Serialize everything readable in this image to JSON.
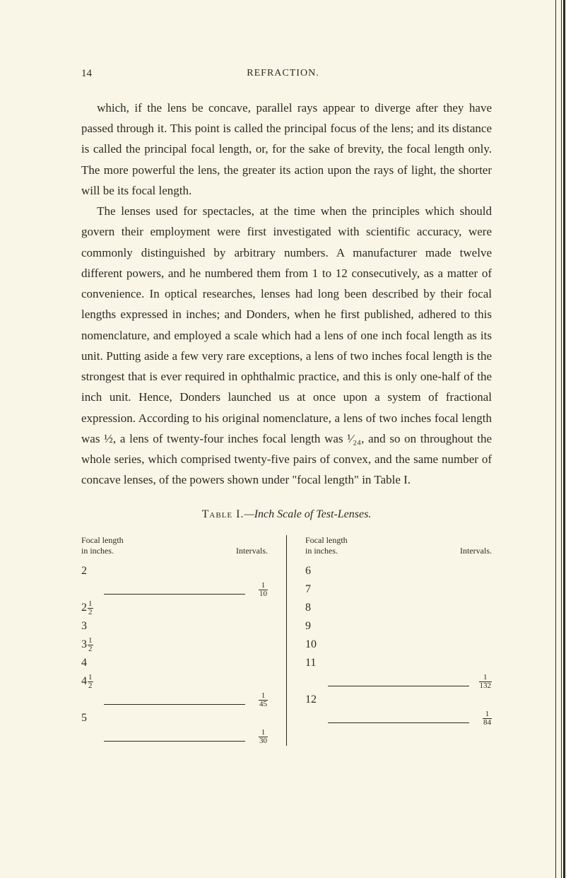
{
  "page": {
    "number": "14",
    "running_header": "REFRACTION."
  },
  "body": {
    "p1": "which, if the lens be concave, parallel rays appear to diverge after they have passed through it. This point is called the principal focus of the lens; and its distance is called the principal focal length, or, for the sake of brevity, the focal length only. The more powerful the lens, the greater its action upon the rays of light, the shorter will be its focal length.",
    "p2": "The lenses used for spectacles, at the time when the principles which should govern their employment were first investigated with scientific accuracy, were commonly distinguished by arbitrary numbers. A manufacturer made twelve different powers, and he numbered them from 1 to 12 consecutively, as a matter of convenience. In optical researches, lenses had long been described by their focal lengths expressed in inches; and Donders, when he first published, adhered to this nomenclature, and employed a scale which had a lens of one inch focal length as its unit. Putting aside a few very rare exceptions, a lens of two inches focal length is the strongest that is ever required in ophthalmic practice, and this is only one-half of the inch unit. Hence, Donders launched us at once upon a system of fractional expression. According to his original nomenclature, a lens of two inches focal length was ½, a lens of twenty-four inches focal length was ¹⁄₂₄, and so on throughout the whole series, which comprised twenty-five pairs of convex, and the same number of concave lenses, of the powers shown under \"focal length\" in Table I."
  },
  "table": {
    "title_caps": "Table I.",
    "title_rest": "—Inch Scale of Test-Lenses.",
    "header_focal": "Focal length\nin inches.",
    "header_interval": "Intervals.",
    "left": {
      "rows": [
        {
          "val": "2",
          "rule": false
        },
        {
          "val": "",
          "rule": true,
          "interval_num": "1",
          "interval_den": "10"
        },
        {
          "val": "2½",
          "mixed_whole": "2",
          "mixed_num": "1",
          "mixed_den": "2",
          "rule": false
        },
        {
          "val": "3",
          "rule": false
        },
        {
          "val": "3½",
          "mixed_whole": "3",
          "mixed_num": "1",
          "mixed_den": "2",
          "rule": false
        },
        {
          "val": "4",
          "rule": false
        },
        {
          "val": "4½",
          "mixed_whole": "4",
          "mixed_num": "1",
          "mixed_den": "2",
          "rule": false
        },
        {
          "val": "",
          "rule": true,
          "interval_num": "1",
          "interval_den": "45"
        },
        {
          "val": "5",
          "rule": false
        },
        {
          "val": "",
          "rule": true,
          "interval_num": "1",
          "interval_den": "30"
        }
      ]
    },
    "right": {
      "rows": [
        {
          "val": "6",
          "rule": false
        },
        {
          "val": "7",
          "rule": false
        },
        {
          "val": "8",
          "rule": false
        },
        {
          "val": "9",
          "rule": false
        },
        {
          "val": "10",
          "rule": false
        },
        {
          "val": "11",
          "rule": false
        },
        {
          "val": "",
          "rule": true,
          "interval_num": "1",
          "interval_den": "132"
        },
        {
          "val": "12",
          "rule": false
        },
        {
          "val": "",
          "rule": true,
          "interval_num": "1",
          "interval_den": "84"
        }
      ]
    }
  },
  "colors": {
    "background": "#f9f6e8",
    "text": "#2a2a1f"
  }
}
